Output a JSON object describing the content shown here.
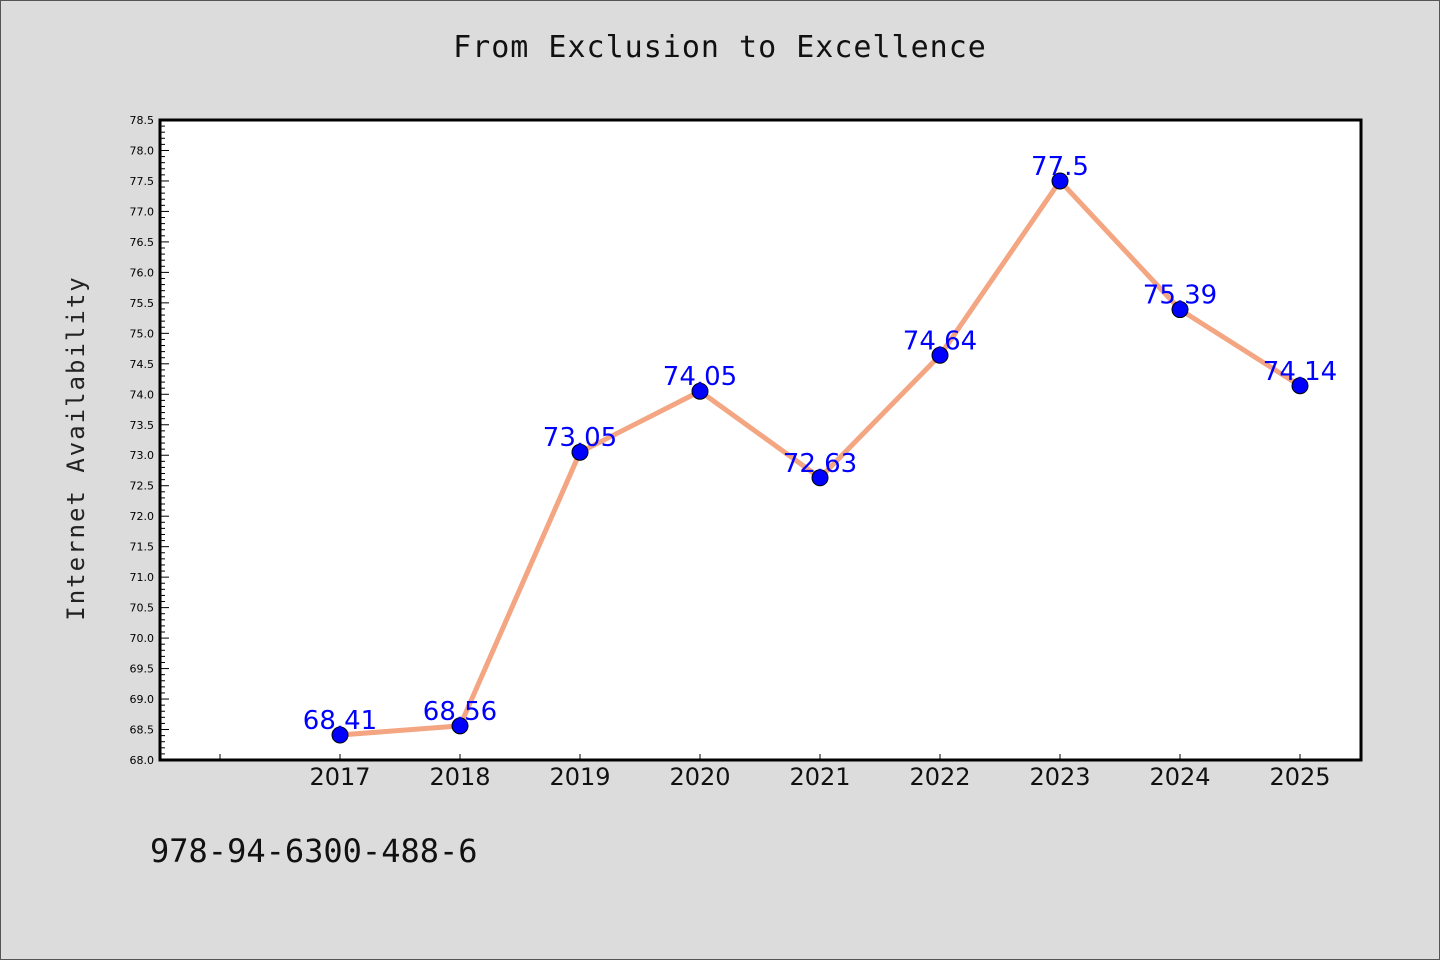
{
  "footer_text": "978-94-6300-488-6",
  "colors": {
    "background": "#dcdcdc",
    "plot_background": "#ffffff",
    "line": "#f4a582",
    "marker": "#0000ff",
    "data_label": "#0000ff"
  },
  "chart_data": {
    "type": "line",
    "title": "From Exclusion to Excellence",
    "xlabel": "",
    "ylabel": "Internet Availability",
    "categories": [
      "2017",
      "2018",
      "2019",
      "2020",
      "2021",
      "2022",
      "2023",
      "2024",
      "2025"
    ],
    "values": [
      68.41,
      68.56,
      73.05,
      74.05,
      72.63,
      74.64,
      77.5,
      75.39,
      74.14
    ],
    "data_labels": [
      "68.41",
      "68.56",
      "73.05",
      "74.05",
      "72.63",
      "74.64",
      "77.5",
      "75.39",
      "74.14"
    ],
    "ylim": [
      68.0,
      78.5
    ],
    "y_ticks": [
      "68.0",
      "68.5",
      "69.0",
      "69.5",
      "70.0",
      "70.5",
      "71.0",
      "71.5",
      "72.0",
      "72.5",
      "73.0",
      "73.5",
      "74.0",
      "74.5",
      "75.0",
      "75.5",
      "76.0",
      "76.5",
      "77.0",
      "77.5",
      "78.0",
      "78.5"
    ],
    "grid": false,
    "legend": "none",
    "marker": "circle"
  }
}
